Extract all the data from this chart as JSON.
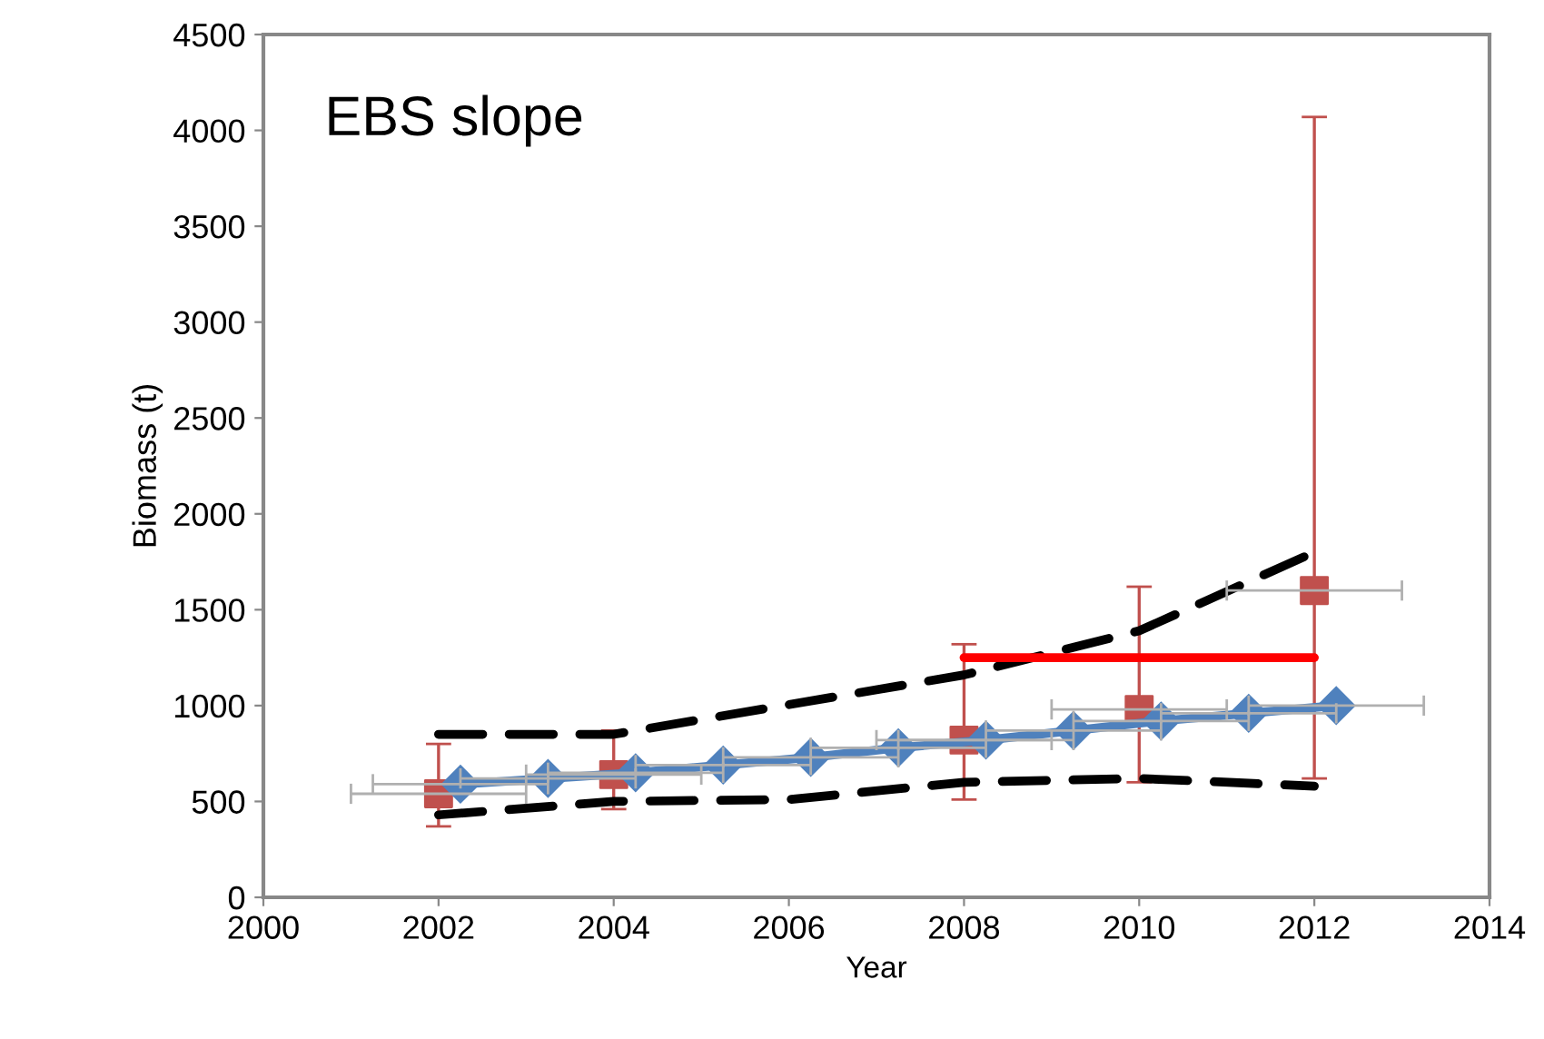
{
  "chart_data": {
    "type": "line",
    "xlabel": "Year",
    "ylabel": "Biomass (t)",
    "annotations": [
      "EBS slope"
    ],
    "xlim": [
      2000,
      2014
    ],
    "xticks": [
      2000,
      2002,
      2004,
      2006,
      2008,
      2010,
      2012,
      2014
    ],
    "ylim": [
      0,
      4500
    ],
    "yticks": [
      0,
      500,
      1000,
      1500,
      2000,
      2500,
      3000,
      3500,
      4000,
      4500
    ],
    "grid": false,
    "legend": false,
    "series": [
      {
        "color": "#4f81bd",
        "marker": "diamond",
        "line_style": "solid",
        "x": [
          2002.25,
          2003.25,
          2004.25,
          2005.25,
          2006.25,
          2007.25,
          2008.25,
          2009.25,
          2010.25,
          2011.25,
          2012.25
        ],
        "values": [
          590,
          620,
          650,
          690,
          730,
          780,
          820,
          870,
          920,
          960,
          1000
        ],
        "xerrors": [
          1,
          1,
          1,
          1,
          1,
          1,
          1,
          1,
          1,
          1,
          1
        ]
      },
      {
        "type": "scatter",
        "color": "#c0504d",
        "marker": "square",
        "x": [
          2002,
          2004,
          2008,
          2010,
          2012
        ],
        "values": [
          540,
          640,
          820,
          980,
          1600
        ],
        "errors": [
          [
            370,
            800
          ],
          [
            460,
            870
          ],
          [
            510,
            1320
          ],
          [
            600,
            1620
          ],
          [
            620,
            4070
          ]
        ],
        "xerrors": [
          1,
          1,
          1,
          1,
          1
        ]
      },
      {
        "color": "#000000",
        "marker": "none",
        "line_style": "dashed",
        "x": [
          2002,
          2004,
          2008,
          2010,
          2012
        ],
        "values": [
          850,
          850,
          1160,
          1390,
          1800
        ]
      },
      {
        "color": "#000000",
        "marker": "none",
        "line_style": "dashed",
        "x": [
          2002,
          2004,
          2006,
          2008,
          2010,
          2012
        ],
        "values": [
          430,
          500,
          510,
          600,
          620,
          580
        ]
      },
      {
        "color": "#ff0000",
        "marker": "none",
        "line_style": "solid",
        "x": [
          2008,
          2012
        ],
        "values": [
          1250,
          1250
        ]
      }
    ]
  }
}
